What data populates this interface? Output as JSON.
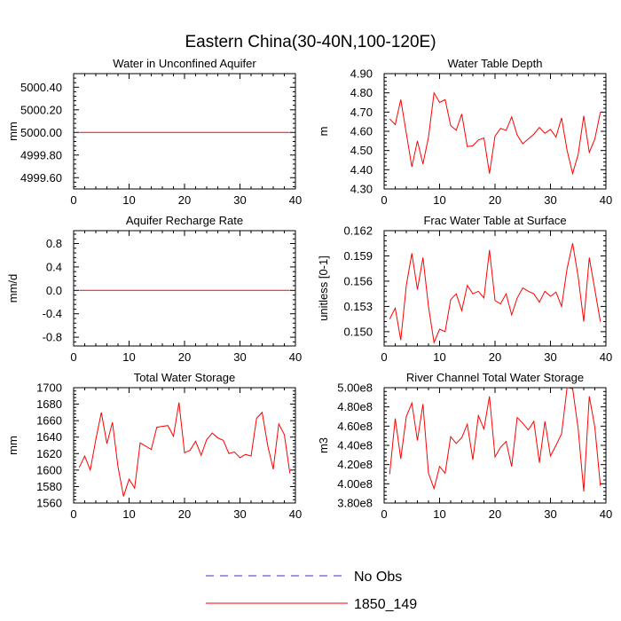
{
  "title": "Eastern China(30-40N,100-120E)",
  "colors": {
    "model": "#ff0000",
    "obs": "#3333cc",
    "axis": "#000000"
  },
  "legend": {
    "obs_label": "No Obs",
    "model_label": "1850_149"
  },
  "chart_data": [
    {
      "type": "line",
      "title": "Water in Unconfined Aquifer",
      "ylabel": "mm",
      "xlim": [
        0,
        40
      ],
      "ylim": [
        4999.5,
        5000.52
      ],
      "xticks": [
        0,
        10,
        20,
        30,
        40
      ],
      "xtick_labels": [
        "0",
        "10",
        "20",
        "30",
        "40"
      ],
      "yticks": [
        4999.6,
        4999.8,
        5000.0,
        5000.2,
        5000.4
      ],
      "ytick_labels": [
        "4999.60",
        "4999.80",
        "5000.00",
        "5000.20",
        "5000.40"
      ],
      "series": [
        {
          "name": "1850_149",
          "x": [
            1,
            39
          ],
          "values": [
            5000.0,
            5000.0
          ]
        }
      ]
    },
    {
      "type": "line",
      "title": "Water Table Depth",
      "ylabel": "m",
      "xlim": [
        0,
        40
      ],
      "ylim": [
        4.3,
        4.9
      ],
      "xticks": [
        0,
        10,
        20,
        30,
        40
      ],
      "xtick_labels": [
        "0",
        "10",
        "20",
        "30",
        "40"
      ],
      "yticks": [
        4.3,
        4.4,
        4.5,
        4.6,
        4.7,
        4.8,
        4.9
      ],
      "ytick_labels": [
        "4.30",
        "4.40",
        "4.50",
        "4.60",
        "4.70",
        "4.80",
        "4.90"
      ],
      "series": [
        {
          "name": "1850_149",
          "x": [
            1,
            2,
            3,
            4,
            5,
            6,
            7,
            8,
            9,
            10,
            11,
            12,
            13,
            14,
            15,
            16,
            17,
            18,
            19,
            20,
            21,
            22,
            23,
            24,
            25,
            26,
            27,
            28,
            29,
            30,
            31,
            32,
            33,
            34,
            35,
            36,
            37,
            38,
            39
          ],
          "values": [
            4.665,
            4.635,
            4.765,
            4.59,
            4.415,
            4.55,
            4.43,
            4.57,
            4.8,
            4.75,
            4.765,
            4.63,
            4.605,
            4.69,
            4.52,
            4.525,
            4.555,
            4.565,
            4.38,
            4.575,
            4.615,
            4.605,
            4.675,
            4.58,
            4.535,
            4.56,
            4.585,
            4.62,
            4.59,
            4.61,
            4.57,
            4.67,
            4.5,
            4.38,
            4.48,
            4.68,
            4.49,
            4.56,
            4.7
          ]
        }
      ]
    },
    {
      "type": "line",
      "title": "Aquifer Recharge Rate",
      "ylabel": "mm/d",
      "xlim": [
        0,
        40
      ],
      "ylim": [
        -0.95,
        1.02
      ],
      "xticks": [
        0,
        10,
        20,
        30,
        40
      ],
      "xtick_labels": [
        "0",
        "10",
        "20",
        "30",
        "40"
      ],
      "yticks": [
        -0.8,
        -0.4,
        0.0,
        0.4,
        0.8
      ],
      "ytick_labels": [
        "-0.8",
        "-0.4",
        "0.0",
        "0.4",
        "0.8"
      ],
      "series": [
        {
          "name": "1850_149",
          "x": [
            1,
            39
          ],
          "values": [
            0.0,
            0.0
          ]
        }
      ]
    },
    {
      "type": "line",
      "title": "Frac Water Table at Surface",
      "ylabel": "unitless [0-1]",
      "xlim": [
        0,
        40
      ],
      "ylim": [
        0.1483,
        0.162
      ],
      "xticks": [
        0,
        10,
        20,
        30,
        40
      ],
      "xtick_labels": [
        "0",
        "10",
        "20",
        "30",
        "40"
      ],
      "yticks": [
        0.15,
        0.153,
        0.156,
        0.159,
        0.162
      ],
      "ytick_labels": [
        "0.150",
        "0.153",
        "0.156",
        "0.159",
        "0.162"
      ],
      "series": [
        {
          "name": "1850_149",
          "x": [
            1,
            2,
            3,
            4,
            5,
            6,
            7,
            8,
            9,
            10,
            11,
            12,
            13,
            14,
            15,
            16,
            17,
            18,
            19,
            20,
            21,
            22,
            23,
            24,
            25,
            26,
            27,
            28,
            29,
            30,
            31,
            32,
            33,
            34,
            35,
            36,
            37,
            38,
            39
          ],
          "values": [
            0.1515,
            0.1528,
            0.149,
            0.1555,
            0.1593,
            0.155,
            0.1588,
            0.153,
            0.1487,
            0.1503,
            0.15,
            0.1538,
            0.1545,
            0.1525,
            0.1555,
            0.1545,
            0.1548,
            0.154,
            0.1597,
            0.1537,
            0.1533,
            0.1545,
            0.152,
            0.154,
            0.1552,
            0.1548,
            0.1545,
            0.1535,
            0.1548,
            0.1542,
            0.1547,
            0.153,
            0.1575,
            0.1605,
            0.1565,
            0.1512,
            0.1588,
            0.155,
            0.1512
          ]
        }
      ]
    },
    {
      "type": "line",
      "title": "Total Water Storage",
      "ylabel": "mm",
      "xlim": [
        0,
        40
      ],
      "ylim": [
        1560,
        1700
      ],
      "xticks": [
        0,
        10,
        20,
        30,
        40
      ],
      "xtick_labels": [
        "0",
        "10",
        "20",
        "30",
        "40"
      ],
      "yticks": [
        1560,
        1580,
        1600,
        1620,
        1640,
        1660,
        1680,
        1700
      ],
      "ytick_labels": [
        "1560",
        "1580",
        "1600",
        "1620",
        "1640",
        "1660",
        "1680",
        "1700"
      ],
      "series": [
        {
          "name": "1850_149",
          "x": [
            1,
            2,
            3,
            4,
            5,
            6,
            7,
            8,
            9,
            10,
            11,
            12,
            13,
            14,
            15,
            16,
            17,
            18,
            19,
            20,
            21,
            22,
            23,
            24,
            25,
            26,
            27,
            28,
            29,
            30,
            31,
            32,
            33,
            34,
            35,
            36,
            37,
            38,
            39
          ],
          "values": [
            1603,
            1617,
            1600,
            1637,
            1670,
            1632,
            1658,
            1604,
            1568,
            1589,
            1578,
            1633,
            1629,
            1625,
            1652,
            1653,
            1654,
            1641,
            1682,
            1621,
            1624,
            1635,
            1618,
            1637,
            1645,
            1639,
            1636,
            1620,
            1622,
            1615,
            1619,
            1617,
            1663,
            1670,
            1630,
            1601,
            1656,
            1643,
            1596
          ]
        }
      ]
    },
    {
      "type": "line",
      "title": "River Channel Total Water Storage",
      "ylabel": "m3",
      "xlim": [
        0,
        40
      ],
      "ylim": [
        380000000,
        500000000
      ],
      "xticks": [
        0,
        10,
        20,
        30,
        40
      ],
      "xtick_labels": [
        "0",
        "10",
        "20",
        "30",
        "40"
      ],
      "yticks": [
        380000000,
        400000000,
        420000000,
        440000000,
        460000000,
        480000000,
        500000000
      ],
      "ytick_labels": [
        "3.80e8",
        "4.00e8",
        "4.20e8",
        "4.40e8",
        "4.60e8",
        "4.80e8",
        "5.00e8"
      ],
      "series": [
        {
          "name": "1850_149",
          "x": [
            1,
            2,
            3,
            4,
            5,
            6,
            7,
            8,
            9,
            10,
            11,
            12,
            13,
            14,
            15,
            16,
            17,
            18,
            19,
            20,
            21,
            22,
            23,
            24,
            25,
            26,
            27,
            28,
            29,
            30,
            31,
            32,
            33,
            34,
            35,
            36,
            37,
            38,
            39
          ],
          "values": [
            410000000,
            468000000,
            426000000,
            470000000,
            484000000,
            445000000,
            483000000,
            411000000,
            395000000,
            418000000,
            411000000,
            449000000,
            442000000,
            448000000,
            462000000,
            425000000,
            471000000,
            457000000,
            491000000,
            428000000,
            438000000,
            444000000,
            418000000,
            469000000,
            463000000,
            456000000,
            465000000,
            422000000,
            465000000,
            429000000,
            440000000,
            452000000,
            500000000,
            499000000,
            457000000,
            392000000,
            491000000,
            459000000,
            398000000
          ]
        }
      ]
    }
  ]
}
